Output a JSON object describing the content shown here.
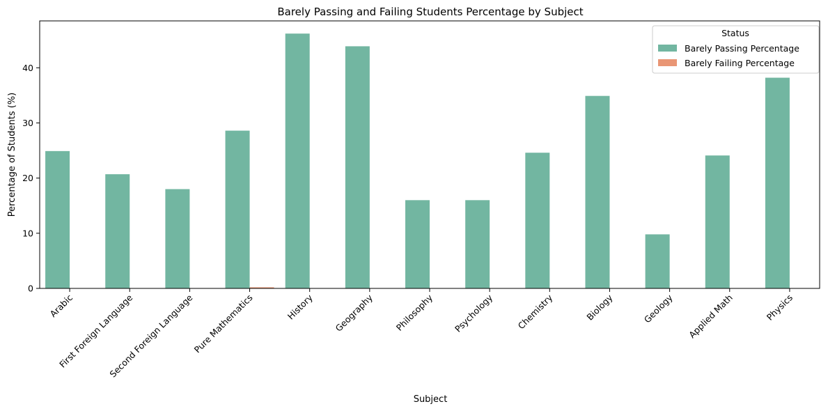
{
  "chart_data": {
    "type": "bar",
    "title": "Barely Passing and Failing Students Percentage by Subject",
    "xlabel": "Subject",
    "ylabel": "Percentage of Students (%)",
    "ylim": [
      0,
      48.5
    ],
    "yticks": [
      0,
      10,
      20,
      30,
      40
    ],
    "categories": [
      "Arabic",
      "First Foreign Language",
      "Second Foreign Language",
      "Pure Mathematics",
      "History",
      "Geography",
      "Philosophy",
      "Psychology",
      "Chemistry",
      "Biology",
      "Geology",
      "Applied Math",
      "Physics"
    ],
    "legend": {
      "title": "Status",
      "placement": "top-right"
    },
    "grid": false,
    "series": [
      {
        "name": "Barely Passing Percentage",
        "color": "#72b6a1",
        "values": [
          24.9,
          20.7,
          18.0,
          28.6,
          46.2,
          43.9,
          16.0,
          16.0,
          24.6,
          34.9,
          9.8,
          24.1,
          38.2
        ]
      },
      {
        "name": "Barely Failing Percentage",
        "color": "#e99675",
        "values": [
          0.0,
          0.0,
          0.0,
          0.2,
          0.0,
          0.0,
          0.0,
          0.0,
          0.0,
          0.0,
          0.0,
          0.0,
          0.0
        ]
      }
    ]
  }
}
